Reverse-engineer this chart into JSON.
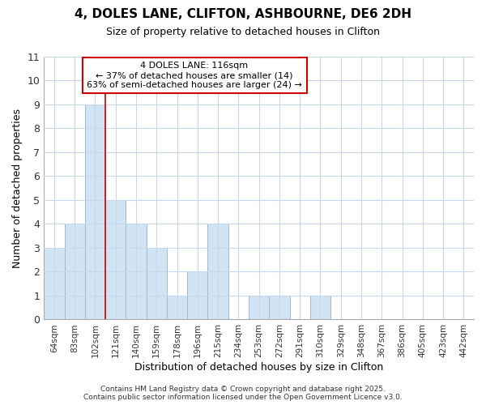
{
  "title_line1": "4, DOLES LANE, CLIFTON, ASHBOURNE, DE6 2DH",
  "title_line2": "Size of property relative to detached houses in Clifton",
  "xlabel": "Distribution of detached houses by size in Clifton",
  "ylabel": "Number of detached properties",
  "bins": [
    "64sqm",
    "83sqm",
    "102sqm",
    "121sqm",
    "140sqm",
    "159sqm",
    "178sqm",
    "196sqm",
    "215sqm",
    "234sqm",
    "253sqm",
    "272sqm",
    "291sqm",
    "310sqm",
    "329sqm",
    "348sqm",
    "367sqm",
    "386sqm",
    "405sqm",
    "423sqm",
    "442sqm"
  ],
  "counts": [
    3,
    4,
    9,
    5,
    4,
    3,
    1,
    2,
    4,
    0,
    1,
    1,
    0,
    1,
    0,
    0,
    0,
    0,
    0,
    0,
    0
  ],
  "bar_color": "#d0e4f4",
  "bar_edge_color": "#a0b8d0",
  "grid_color": "#c8d8ec",
  "vline_x_index": 2.5,
  "vline_color": "#cc0000",
  "annotation_text": "4 DOLES LANE: 116sqm\n← 37% of detached houses are smaller (14)\n63% of semi-detached houses are larger (24) →",
  "annotation_box_color": "#cc0000",
  "ylim": [
    0,
    11
  ],
  "yticks": [
    0,
    1,
    2,
    3,
    4,
    5,
    6,
    7,
    8,
    9,
    10,
    11
  ],
  "footer_line1": "Contains HM Land Registry data © Crown copyright and database right 2025.",
  "footer_line2": "Contains public sector information licensed under the Open Government Licence v3.0.",
  "bg_color": "#ffffff",
  "plot_bg_color": "#ffffff"
}
